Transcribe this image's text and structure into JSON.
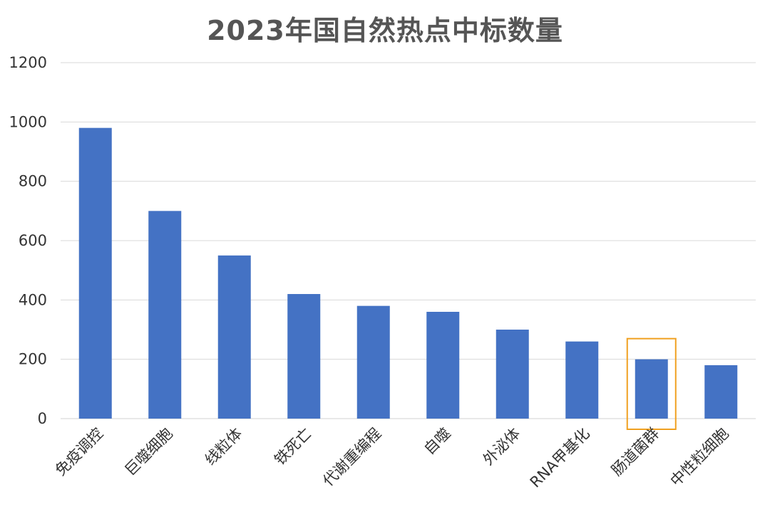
{
  "chart_data": {
    "type": "bar",
    "title": "2023年国自然热点中标数量",
    "xlabel": "",
    "ylabel": "",
    "categories": [
      "免疫调控",
      "巨噬细胞",
      "线粒体",
      "铁死亡",
      "代谢重编程",
      "自噬",
      "外泌体",
      "RNA甲基化",
      "肠道菌群",
      "中性粒细胞"
    ],
    "values": [
      980,
      700,
      550,
      420,
      380,
      360,
      300,
      260,
      200,
      180
    ],
    "ylim": [
      0,
      1200
    ],
    "yticks": [
      0,
      200,
      400,
      600,
      800,
      1000,
      1200
    ],
    "grid": true,
    "legend": "none",
    "bar_color": "#4472C4",
    "highlight": {
      "category": "肠道菌群",
      "color": "#F0A020"
    }
  }
}
